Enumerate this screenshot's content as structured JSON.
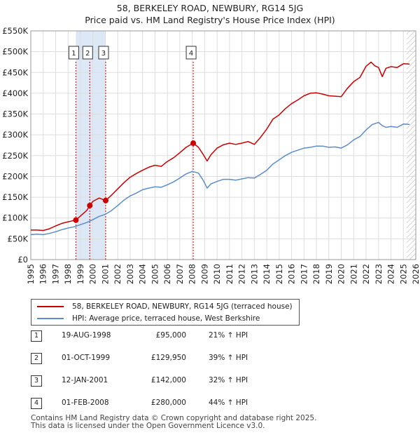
{
  "chart_data": {
    "type": "line",
    "title": "58, BERKELEY ROAD, NEWBURY, RG14 5JG",
    "subtitle": "Price paid vs. HM Land Registry's House Price Index (HPI)",
    "xlim": [
      1995,
      2026
    ],
    "ylim": [
      0,
      550000
    ],
    "x_ticks": [
      "1995",
      "1996",
      "1997",
      "1998",
      "1999",
      "2000",
      "2001",
      "2002",
      "2003",
      "2004",
      "2005",
      "2006",
      "2007",
      "2008",
      "2009",
      "2010",
      "2011",
      "2012",
      "2013",
      "2014",
      "2015",
      "2016",
      "2017",
      "2018",
      "2019",
      "2020",
      "2021",
      "2022",
      "2023",
      "2024",
      "2025",
      "2026"
    ],
    "y_ticks": [
      {
        "value": 0,
        "label": "£0"
      },
      {
        "value": 50000,
        "label": "£50K"
      },
      {
        "value": 100000,
        "label": "£100K"
      },
      {
        "value": 150000,
        "label": "£150K"
      },
      {
        "value": 200000,
        "label": "£200K"
      },
      {
        "value": 250000,
        "label": "£250K"
      },
      {
        "value": 300000,
        "label": "£300K"
      },
      {
        "value": 350000,
        "label": "£350K"
      },
      {
        "value": 400000,
        "label": "£400K"
      },
      {
        "value": 450000,
        "label": "£450K"
      },
      {
        "value": 500000,
        "label": "£500K"
      },
      {
        "value": 550000,
        "label": "£550K"
      }
    ],
    "grid": true,
    "legend_position": "below",
    "shaded_band": [
      1998.63,
      2001.03
    ],
    "hatched_from": 2025.25,
    "series": [
      {
        "name": "58, BERKELEY ROAD, NEWBURY, RG14 5JG (terraced house)",
        "color": "#cc0000",
        "x": [
          1995.0,
          1995.5,
          1996.0,
          1996.5,
          1997.0,
          1997.5,
          1998.0,
          1998.63,
          1999.0,
          1999.5,
          1999.75,
          2000.0,
          2000.5,
          2001.03,
          2001.5,
          2002.0,
          2002.5,
          2003.0,
          2003.5,
          2004.0,
          2004.5,
          2005.0,
          2005.5,
          2006.0,
          2006.5,
          2007.0,
          2007.5,
          2008.08,
          2008.5,
          2008.9,
          2009.2,
          2009.5,
          2010.0,
          2010.5,
          2011.0,
          2011.5,
          2012.0,
          2012.5,
          2013.0,
          2013.5,
          2014.0,
          2014.5,
          2015.0,
          2015.5,
          2016.0,
          2016.5,
          2017.0,
          2017.5,
          2018.0,
          2018.5,
          2019.0,
          2019.5,
          2020.0,
          2020.5,
          2021.0,
          2021.5,
          2022.0,
          2022.4,
          2022.7,
          2023.0,
          2023.3,
          2023.6,
          2024.0,
          2024.5,
          2025.0,
          2025.5
        ],
        "y": [
          71000,
          71000,
          70000,
          74000,
          81000,
          87000,
          91000,
          95000,
          105000,
          118000,
          129950,
          140000,
          148000,
          142000,
          155000,
          170000,
          185000,
          198000,
          207000,
          215000,
          222000,
          227000,
          224000,
          236000,
          245000,
          257000,
          270000,
          280000,
          270000,
          252000,
          237000,
          252000,
          268000,
          276000,
          280000,
          277000,
          280000,
          284000,
          277000,
          294000,
          314000,
          338000,
          348000,
          363000,
          375000,
          384000,
          394000,
          400000,
          401000,
          398000,
          394000,
          393000,
          392000,
          412000,
          428000,
          438000,
          465000,
          475000,
          466000,
          462000,
          440000,
          460000,
          464000,
          462000,
          471000,
          470000
        ]
      },
      {
        "name": "HPI: Average price, terraced house, West Berkshire",
        "color": "#5b8dc9",
        "x": [
          1995.0,
          1995.5,
          1996.0,
          1996.5,
          1997.0,
          1997.5,
          1998.0,
          1998.5,
          1999.0,
          1999.5,
          2000.0,
          2000.5,
          2001.0,
          2001.5,
          2002.0,
          2002.5,
          2003.0,
          2003.5,
          2004.0,
          2004.5,
          2005.0,
          2005.5,
          2006.0,
          2006.5,
          2007.0,
          2007.5,
          2008.0,
          2008.5,
          2008.9,
          2009.2,
          2009.5,
          2010.0,
          2010.5,
          2011.0,
          2011.5,
          2012.0,
          2012.5,
          2013.0,
          2013.5,
          2014.0,
          2014.5,
          2015.0,
          2015.5,
          2016.0,
          2016.5,
          2017.0,
          2017.5,
          2018.0,
          2018.5,
          2019.0,
          2019.5,
          2020.0,
          2020.5,
          2021.0,
          2021.5,
          2022.0,
          2022.5,
          2023.0,
          2023.3,
          2023.6,
          2024.0,
          2024.5,
          2025.0,
          2025.5
        ],
        "y": [
          60000,
          61000,
          60000,
          63000,
          67000,
          72000,
          76000,
          79000,
          84000,
          89000,
          96000,
          104000,
          109000,
          118000,
          130000,
          143000,
          153000,
          160000,
          168000,
          172000,
          175000,
          174000,
          180000,
          187000,
          196000,
          206000,
          212000,
          208000,
          190000,
          172000,
          182000,
          188000,
          193000,
          193000,
          191000,
          194000,
          197000,
          196000,
          205000,
          215000,
          230000,
          240000,
          250000,
          258000,
          263000,
          268000,
          270000,
          273000,
          273000,
          270000,
          271000,
          268000,
          276000,
          288000,
          296000,
          312000,
          325000,
          330000,
          322000,
          318000,
          320000,
          318000,
          326000,
          325000
        ]
      }
    ],
    "sales": [
      {
        "num": "1",
        "date": "19-AUG-1998",
        "price": "£95,000",
        "hpi": "21% ↑ HPI",
        "x": 1998.63,
        "y": 95000
      },
      {
        "num": "2",
        "date": "01-OCT-1999",
        "price": "£129,950",
        "hpi": "39% ↑ HPI",
        "x": 1999.75,
        "y": 129950
      },
      {
        "num": "3",
        "date": "12-JAN-2001",
        "price": "£142,000",
        "hpi": "32% ↑ HPI",
        "x": 2001.03,
        "y": 142000
      },
      {
        "num": "4",
        "date": "01-FEB-2008",
        "price": "£280,000",
        "hpi": "44% ↑ HPI",
        "x": 2008.08,
        "y": 280000
      }
    ]
  },
  "legend": {
    "property": "58, BERKELEY ROAD, NEWBURY, RG14 5JG (terraced house)",
    "hpi": "HPI: Average price, terraced house, West Berkshire"
  },
  "footer": {
    "line1": "Contains HM Land Registry data © Crown copyright and database right 2025.",
    "line2": "This data is licensed under the Open Government Licence v3.0."
  },
  "colors": {
    "property": "#cc0000",
    "hpi": "#5b8dc9",
    "band": "#dde8f6",
    "grid": "#dddddd"
  }
}
